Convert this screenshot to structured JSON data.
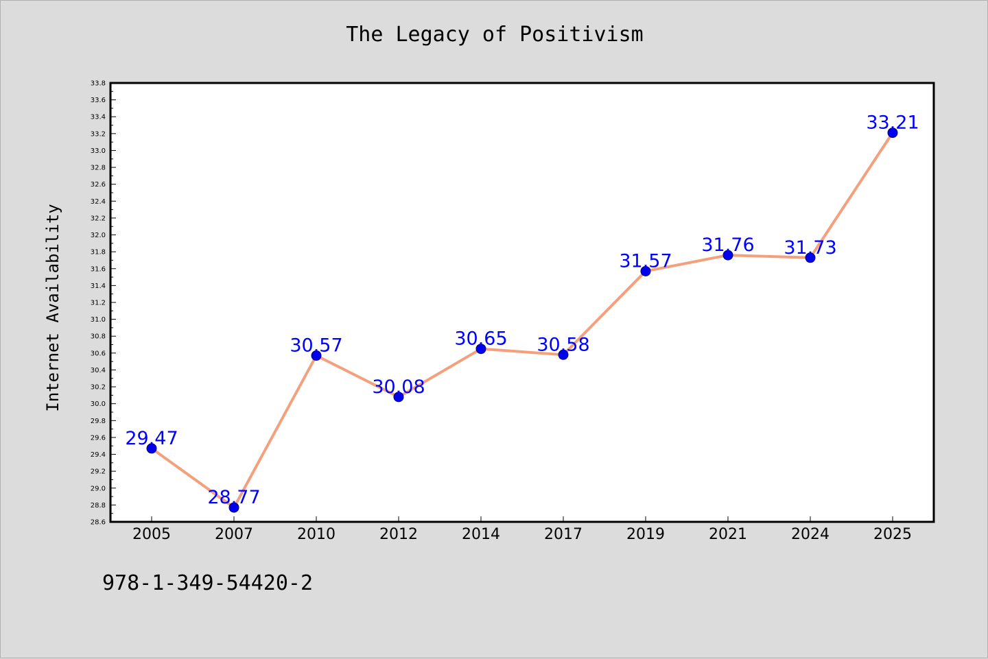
{
  "chart_data": {
    "type": "line",
    "title": "The Legacy of Positivism",
    "xlabel": "",
    "ylabel": "Internet Availability",
    "categories": [
      "2005",
      "2007",
      "2010",
      "2012",
      "2014",
      "2017",
      "2019",
      "2021",
      "2024",
      "2025"
    ],
    "series": [
      {
        "values": [
          29.47,
          28.77,
          30.57,
          30.08,
          30.65,
          30.58,
          31.57,
          31.76,
          31.73,
          33.21
        ],
        "data_labels": [
          "29.47",
          "28.77",
          "30.57",
          "30.08",
          "30.65",
          "30.58",
          "31.57",
          "31.76",
          "31.73",
          "33.21"
        ],
        "line_color": "#f4a07c",
        "marker_color": "#0000ee"
      }
    ],
    "ylim": [
      28.6,
      33.8
    ],
    "yticks": [
      "28.6",
      "28.8",
      "29.0",
      "29.2",
      "29.4",
      "29.6",
      "29.8",
      "30.0",
      "30.2",
      "30.4",
      "30.6",
      "30.8",
      "31.0",
      "31.2",
      "31.4",
      "31.6",
      "31.8",
      "32.0",
      "32.2",
      "32.4",
      "32.6",
      "32.8",
      "33.0",
      "33.2",
      "33.4",
      "33.6",
      "33.8"
    ],
    "grid": false,
    "legend": "none",
    "label_color": "#0000ff",
    "footnote": "978-1-349-54420-2"
  },
  "colors": {
    "figure_background": "#dcdcdc",
    "plot_background": "#ffffff"
  }
}
